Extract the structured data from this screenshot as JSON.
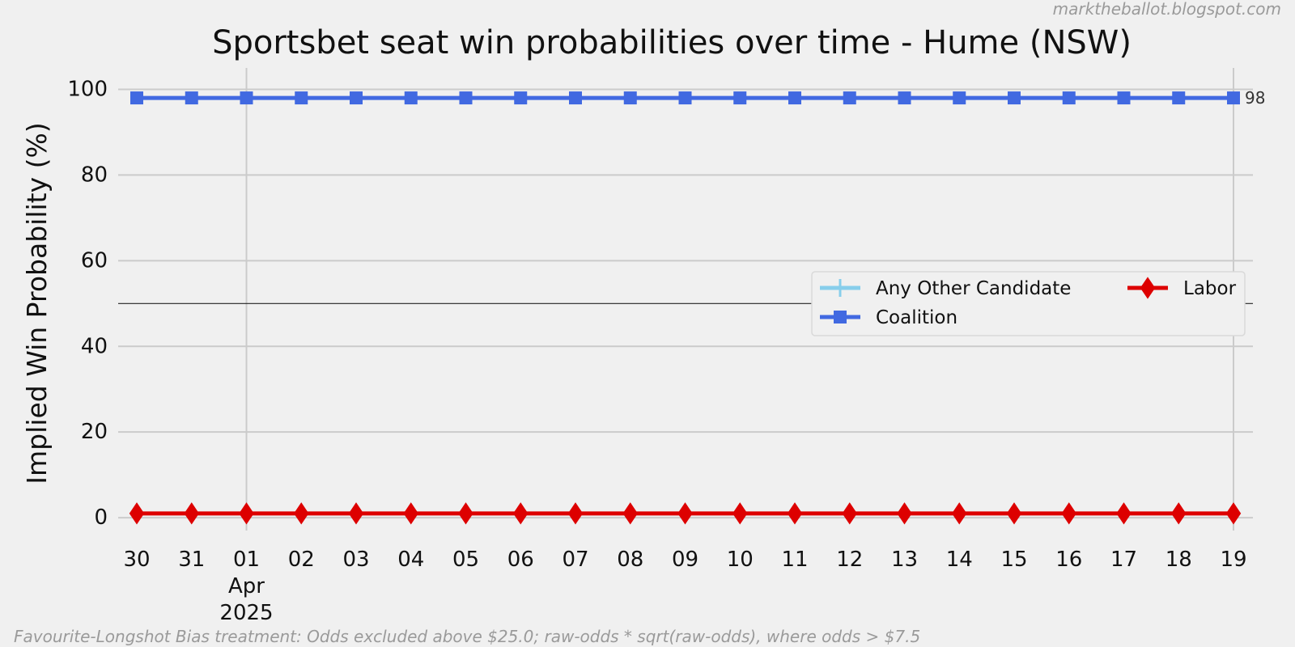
{
  "watermark": "marktheballot.blogspot.com",
  "footnote": "Favourite-Longshot Bias treatment: Odds excluded above $25.0; raw-odds * sqrt(raw-odds), where odds > $7.5",
  "chart_data": {
    "type": "line",
    "title": "Sportsbet seat win probabilities over time - Hume (NSW)",
    "xlabel": "",
    "ylabel": "Implied Win Probability (%)",
    "x": [
      "2025-03-30",
      "2025-03-31",
      "2025-04-01",
      "2025-04-02",
      "2025-04-03",
      "2025-04-04",
      "2025-04-05",
      "2025-04-06",
      "2025-04-07",
      "2025-04-08",
      "2025-04-09",
      "2025-04-10",
      "2025-04-11",
      "2025-04-12",
      "2025-04-13",
      "2025-04-14",
      "2025-04-15",
      "2025-04-16",
      "2025-04-17",
      "2025-04-18",
      "2025-04-19"
    ],
    "x_tick_labels": [
      "30",
      "31",
      "01",
      "02",
      "03",
      "04",
      "05",
      "06",
      "07",
      "08",
      "09",
      "10",
      "11",
      "12",
      "13",
      "14",
      "15",
      "16",
      "17",
      "18",
      "19"
    ],
    "x_month_label": {
      "date": "2025-04-01",
      "month": "Apr",
      "year": "2025"
    },
    "y_ticks": [
      0,
      20,
      40,
      60,
      80,
      100
    ],
    "ylim": [
      -3,
      105
    ],
    "reference_line_y": 50,
    "grid": true,
    "legend_position": "center-right",
    "legend_columns": 2,
    "series": [
      {
        "name": "Any Other Candidate",
        "color": "#87ceeb",
        "marker": "plus",
        "values": [
          null,
          null,
          null,
          null,
          null,
          null,
          null,
          null,
          null,
          null,
          null,
          null,
          null,
          null,
          null,
          null,
          null,
          null,
          null,
          null,
          null
        ]
      },
      {
        "name": "Coalition",
        "color": "#4169e1",
        "marker": "square",
        "values": [
          98,
          98,
          98,
          98,
          98,
          98,
          98,
          98,
          98,
          98,
          98,
          98,
          98,
          98,
          98,
          98,
          98,
          98,
          98,
          98,
          98
        ],
        "end_label": "98"
      },
      {
        "name": "Labor",
        "color": "#dd0000",
        "marker": "diamond",
        "values": [
          1,
          1,
          1,
          1,
          1,
          1,
          1,
          1,
          1,
          1,
          1,
          1,
          1,
          1,
          1,
          1,
          1,
          1,
          1,
          1,
          1
        ]
      }
    ],
    "legend_order": [
      "Any Other Candidate",
      "Labor",
      "Coalition"
    ]
  }
}
